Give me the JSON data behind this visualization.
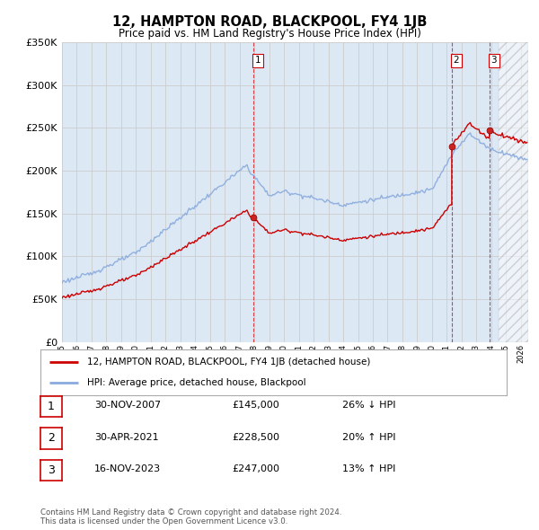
{
  "title": "12, HAMPTON ROAD, BLACKPOOL, FY4 1JB",
  "subtitle": "Price paid vs. HM Land Registry's House Price Index (HPI)",
  "ylim": [
    0,
    350000
  ],
  "xlim_start": 1995.0,
  "xlim_end": 2026.5,
  "legend_line1": "12, HAMPTON ROAD, BLACKPOOL, FY4 1JB (detached house)",
  "legend_line2": "HPI: Average price, detached house, Blackpool",
  "t1_year": 2007.9167,
  "t2_year": 2021.3333,
  "t3_year": 2023.875,
  "p1": 145000,
  "p2": 228500,
  "p3": 247000,
  "transactions": [
    {
      "num": "1",
      "date": "30-NOV-2007",
      "price": "£145,000",
      "change": "26% ↓ HPI"
    },
    {
      "num": "2",
      "date": "30-APR-2021",
      "price": "£228,500",
      "change": "20% ↑ HPI"
    },
    {
      "num": "3",
      "date": "16-NOV-2023",
      "price": "£247,000",
      "change": "13% ↑ HPI"
    }
  ],
  "footnote1": "Contains HM Land Registry data © Crown copyright and database right 2024.",
  "footnote2": "This data is licensed under the Open Government Licence v3.0.",
  "property_color": "#cc0000",
  "hpi_color": "#88aadd",
  "vline_color": "#cc0000",
  "grid_color": "#cccccc",
  "background_color": "#ffffff",
  "plot_bg_color": "#dde8f5"
}
